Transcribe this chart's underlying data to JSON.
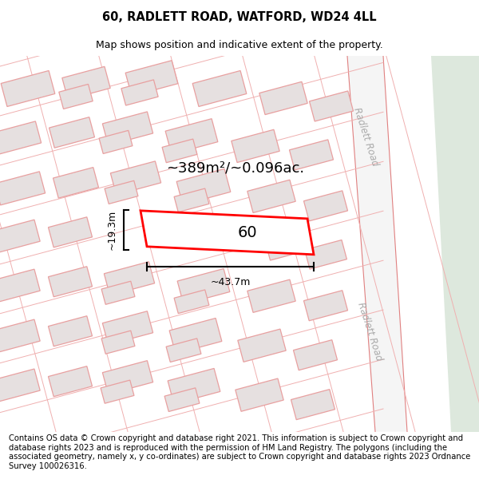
{
  "title": "60, RADLETT ROAD, WATFORD, WD24 4LL",
  "subtitle": "Map shows position and indicative extent of the property.",
  "area_text": "~389m²/~0.096ac.",
  "dim_width": "~43.7m",
  "dim_height": "~19.3m",
  "label_60": "60",
  "road_label": "Radlett Road",
  "footer": "Contains OS data © Crown copyright and database right 2021. This information is subject to Crown copyright and database rights 2023 and is reproduced with the permission of HM Land Registry. The polygons (including the associated geometry, namely x, y co-ordinates) are subject to Crown copyright and database rights 2023 Ordnance Survey 100026316.",
  "bg_color": "#ffffff",
  "map_bg": "#f8f6f6",
  "building_fill": "#e6e0e0",
  "building_stroke": "#e8a0a0",
  "highlight_fill": "#ffffff",
  "highlight_stroke": "#ff0000",
  "green_fill": "#dde8dd",
  "road_color": "#ffffff",
  "grid_color": "#f0b0b0",
  "title_fontsize": 10.5,
  "subtitle_fontsize": 9,
  "footer_fontsize": 7.2
}
